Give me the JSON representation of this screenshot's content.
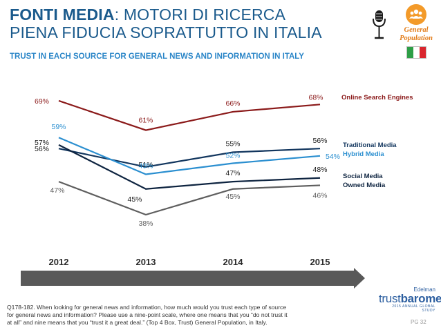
{
  "header": {
    "title_bold": "FONTI MEDIA",
    "title_rest": ": MOTORI DI RICERCA",
    "title_line2": "PIENA FIDUCIA SOPRATTUTTO IN ITALIA",
    "subtitle": "TRUST IN EACH SOURCE FOR GENERAL NEWS AND INFORMATION IN ITALY"
  },
  "badge": {
    "icon": "people-group-icon",
    "label_line1": "General",
    "label_line2": "Population"
  },
  "flag": {
    "colors": [
      "#2e9e46",
      "#ffffff",
      "#d9262e"
    ]
  },
  "chart_data": {
    "type": "line",
    "x": [
      "2012",
      "2013",
      "2014",
      "2015"
    ],
    "series": [
      {
        "name": "Online Search Engines",
        "color": "#8b1a1a",
        "values": [
          69,
          61,
          66,
          68
        ],
        "labels": [
          "69%",
          "61%",
          "66%",
          "68%"
        ]
      },
      {
        "name": "Traditional Media",
        "color": "#12365e",
        "values": [
          56,
          51,
          55,
          56
        ],
        "labels": [
          "56%",
          "51%",
          "55%",
          "56%"
        ]
      },
      {
        "name": "Hybrid Media",
        "color": "#2b8fd0",
        "values": [
          59,
          49,
          52,
          54
        ],
        "labels": [
          "59%",
          "49%",
          "52%",
          "54%"
        ]
      },
      {
        "name": "Social Media",
        "color": "#0e2440",
        "values": [
          57,
          45,
          47,
          48
        ],
        "labels": [
          "57%",
          "45%",
          "47%",
          "48%"
        ]
      },
      {
        "name": "Owned Media",
        "color": "#5e5e5e",
        "values": [
          47,
          38,
          45,
          46
        ],
        "labels": [
          "47%",
          "38%",
          "45%",
          "46%"
        ]
      }
    ],
    "ylim": [
      35,
      72
    ]
  },
  "footnote": "Q178-182. When looking for general news and information, how much would you trust each type of source for general news and information? Please use a nine-point scale, where one means that you “do not trust it at all” and nine means that you “trust it a great deal.” (Top 4 Box, Trust) General Population, in Italy.",
  "brand": {
    "small": "Edelman",
    "logo_a": "trust",
    "logo_b": "barometer",
    "tag": "2015 ANNUAL GLOBAL STUDY"
  },
  "page_number": "PG 32"
}
